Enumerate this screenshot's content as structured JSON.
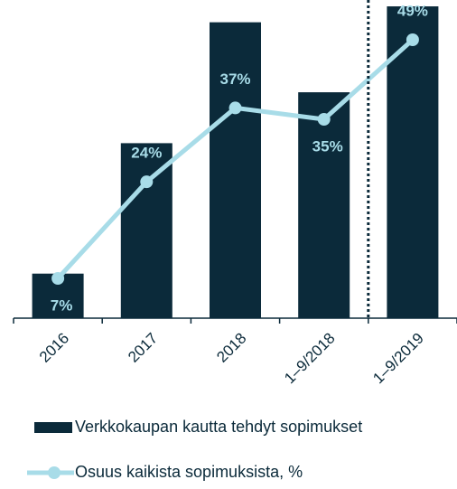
{
  "chart_data": {
    "type": "bar",
    "categories": [
      "2016",
      "2017",
      "2018",
      "1–9/2018",
      "1–9/2019"
    ],
    "series": [
      {
        "name": "Verkkokaupan kautta tehdyt sopimukset",
        "type": "bar",
        "color": "#0b2a3a",
        "values": [
          14,
          55,
          93,
          71,
          98
        ]
      },
      {
        "name": "Osuus kaikista sopimuksista, %",
        "type": "line",
        "axis": "y2",
        "color": "#a8dce8",
        "values": [
          7,
          24,
          37,
          35,
          49
        ],
        "value_labels": [
          "7%",
          "24%",
          "37%",
          "35%",
          "49%"
        ]
      }
    ],
    "ylim": [
      0,
      100
    ],
    "y2lim": [
      0,
      56
    ],
    "divider_after": 3,
    "legend": "bottom"
  }
}
